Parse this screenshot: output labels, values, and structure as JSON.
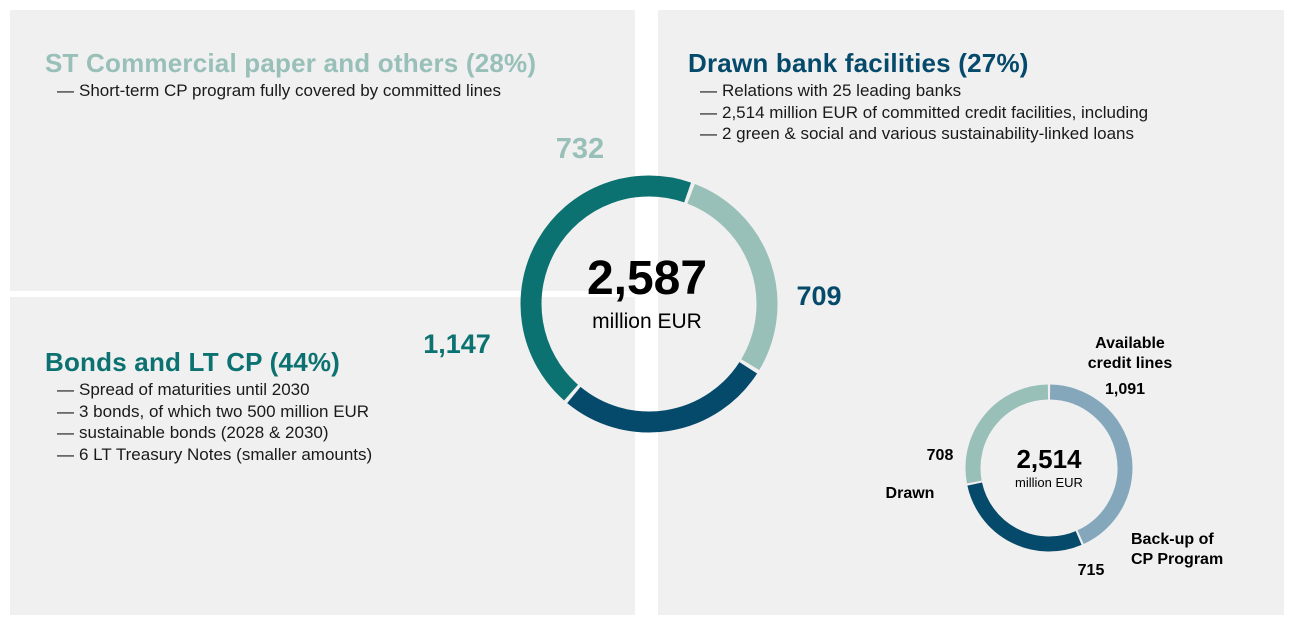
{
  "colors": {
    "panel_bg": "#eff0ef",
    "st_cp": "#98bfb8",
    "drawn_bank": "#064a6b",
    "bonds": "#0b7271",
    "available": "#85a7bc",
    "drawn_small": "#98bfb8",
    "backup": "#064a6b"
  },
  "sections": {
    "st_cp": {
      "title": "ST Commercial paper and others (28%)",
      "bullets": [
        "Short-term CP program fully covered by committed lines"
      ]
    },
    "drawn_bank": {
      "title": "Drawn bank facilities (27%)",
      "bullets": [
        "Relations with 25 leading banks",
        "2,514 million EUR of committed credit facilities, including",
        "2 green & social and various sustainability-linked loans"
      ]
    },
    "bonds": {
      "title": "Bonds and LT CP (44%)",
      "bullets": [
        "Spread of maturities until 2030",
        "3 bonds, of which two 500 million EUR",
        "sustainable bonds (2028 & 2030)",
        "6 LT Treasury Notes (smaller amounts)"
      ]
    }
  },
  "chart_data": [
    {
      "type": "pie",
      "donut": true,
      "center_value": "2,587",
      "center_unit": "million EUR",
      "series": [
        {
          "key": "st_cp",
          "value": 732,
          "label": "732",
          "color": "#98bfb8"
        },
        {
          "key": "drawn_bank",
          "value": 709,
          "label": "709",
          "color": "#064a6b"
        },
        {
          "key": "bonds",
          "value": 1147,
          "label": "1,147",
          "color": "#0b7271"
        }
      ]
    },
    {
      "type": "pie",
      "donut": true,
      "center_value": "2,514",
      "center_unit": "million EUR",
      "series": [
        {
          "key": "available",
          "value": 1091,
          "label": "1,091",
          "name": "Available credit lines",
          "name_lines": [
            "Available",
            "credit lines"
          ],
          "color": "#85a7bc"
        },
        {
          "key": "backup",
          "value": 715,
          "label": "715",
          "name": "Back-up of CP Program",
          "name_lines": [
            "Back-up of",
            "CP Program"
          ],
          "color": "#064a6b"
        },
        {
          "key": "drawn",
          "value": 708,
          "label": "708",
          "name": "Drawn",
          "name_lines": [
            "Drawn"
          ],
          "color": "#98bfb8"
        }
      ]
    }
  ]
}
